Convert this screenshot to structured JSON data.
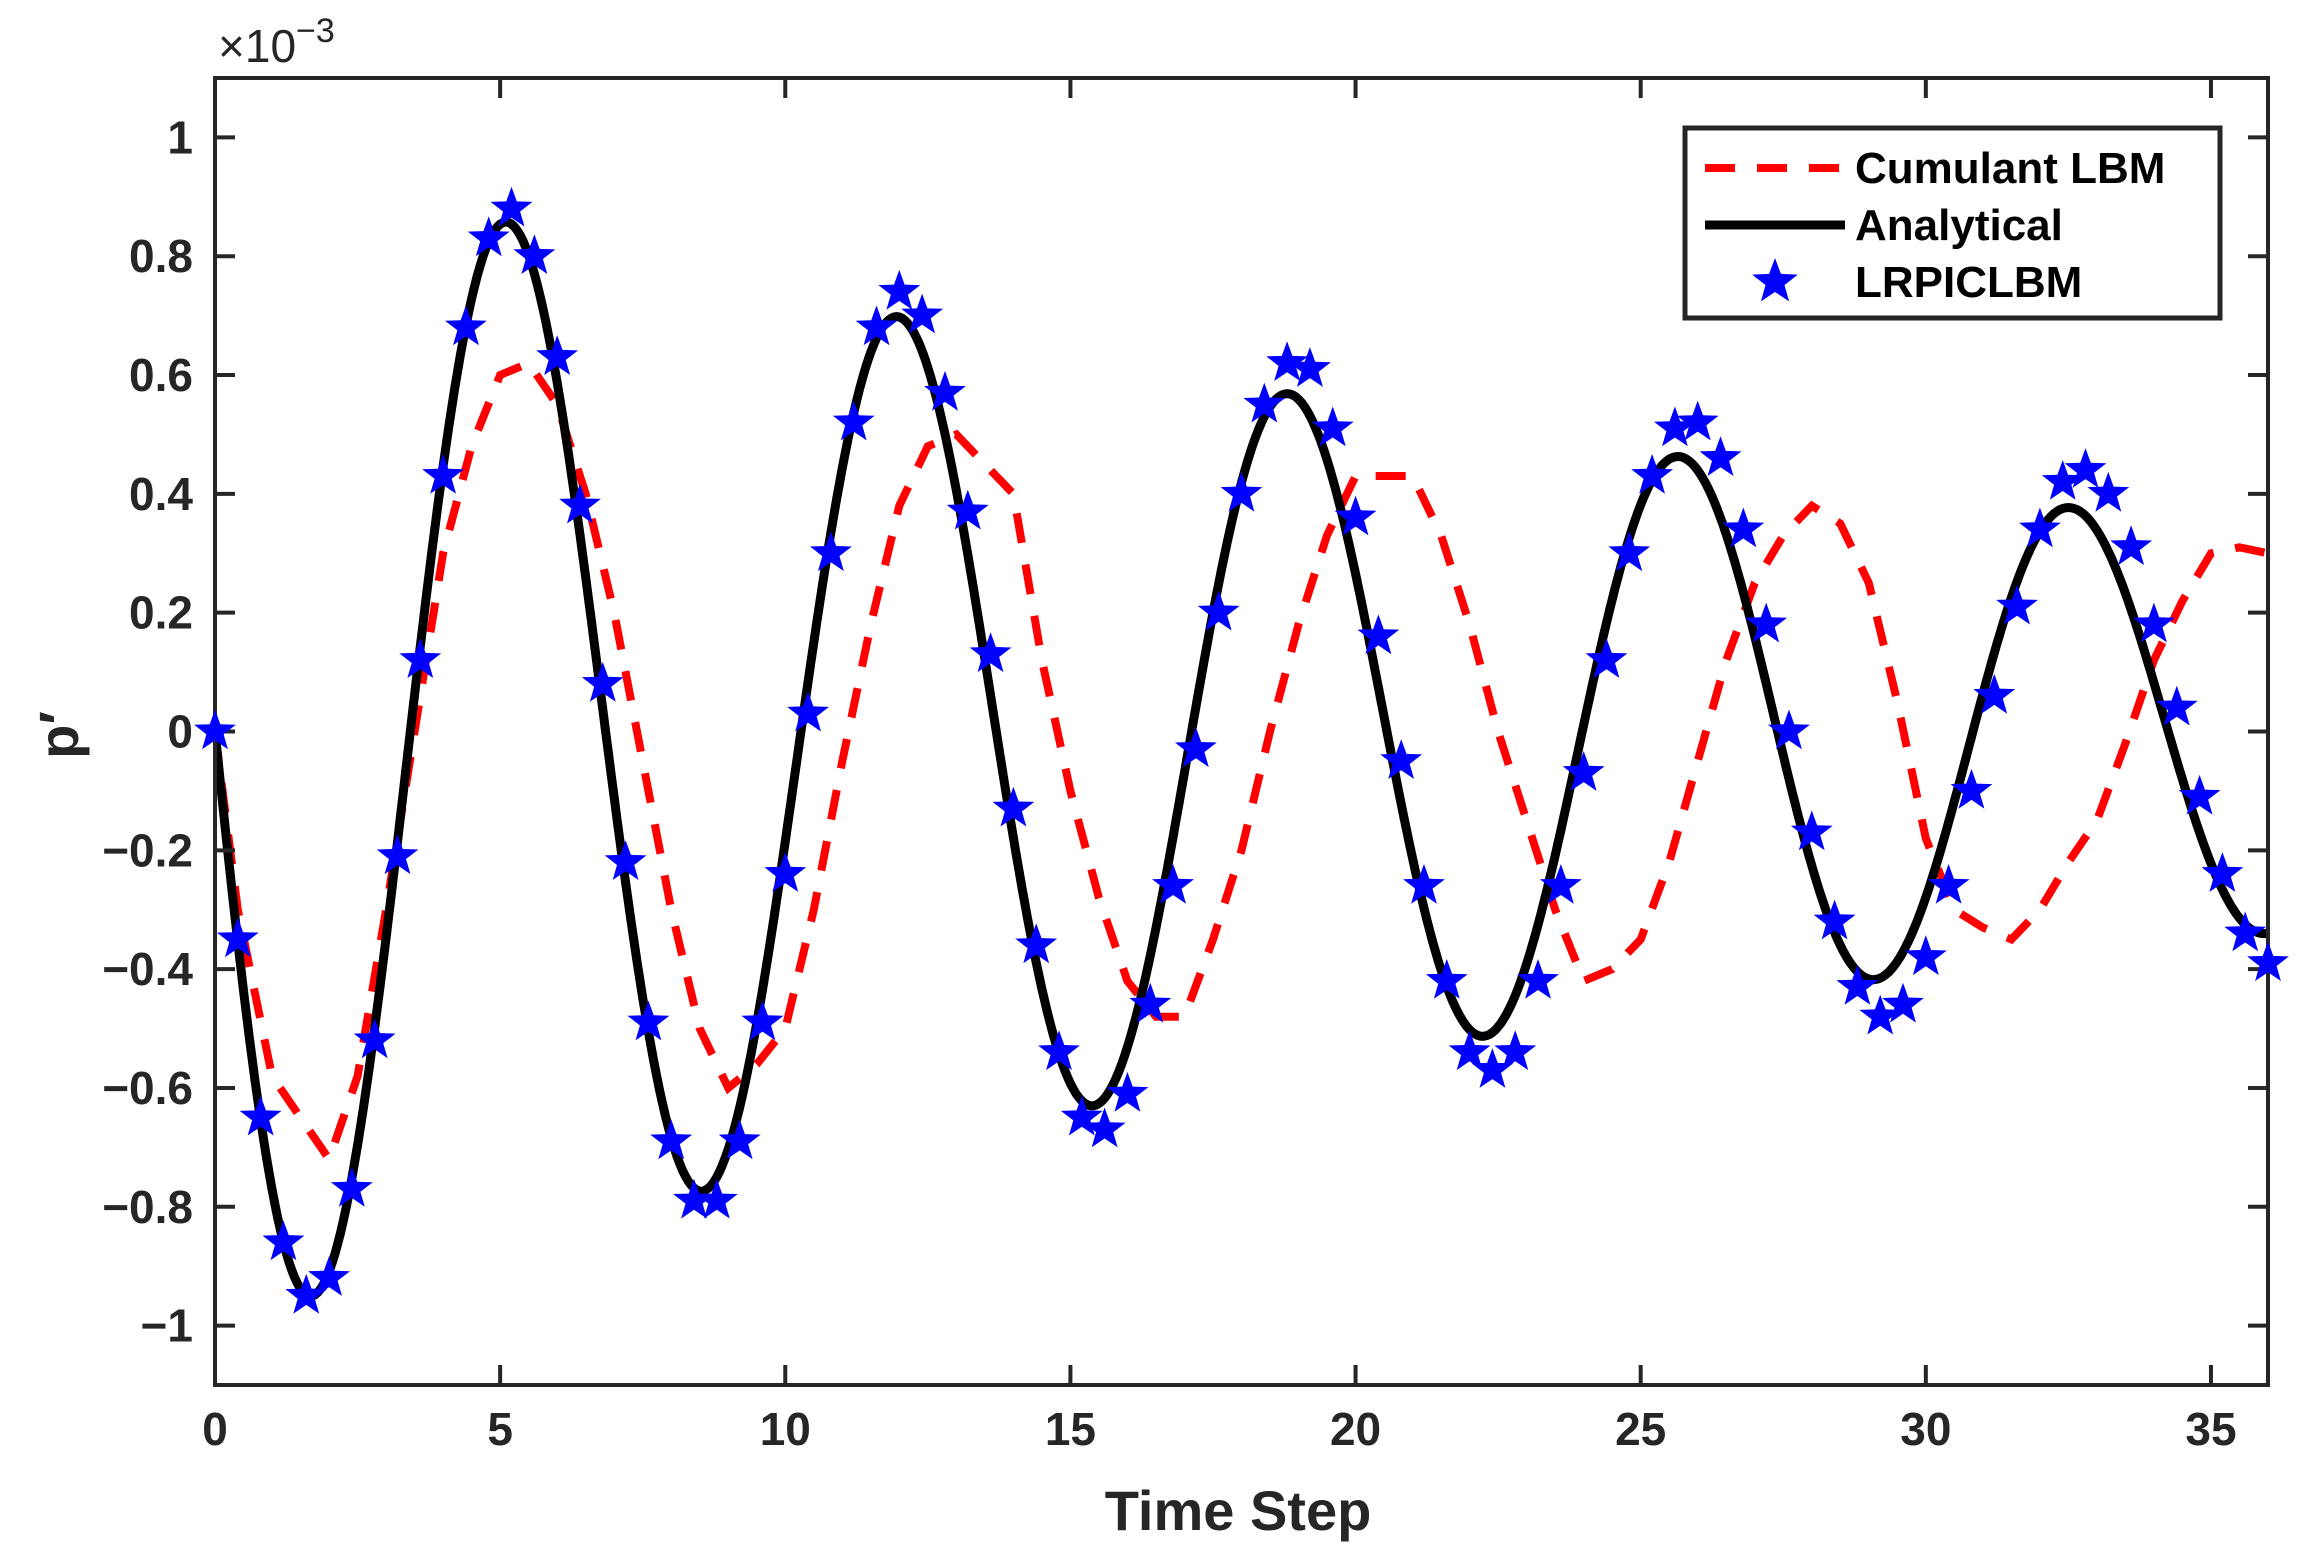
{
  "chart_data": {
    "type": "line",
    "xlabel": "Time Step",
    "ylabel": "p′",
    "y_exponent_label": "×10",
    "y_exponent_power": "−3",
    "xlim": [
      0,
      36
    ],
    "ylim": [
      -1.1,
      1.1
    ],
    "y_scale_factor": 0.001,
    "grid": false,
    "legend_position": "top-right",
    "x_ticks": [
      0,
      5,
      10,
      15,
      20,
      25,
      30,
      35
    ],
    "x_tick_labels": [
      "0",
      "5",
      "10",
      "15",
      "20",
      "25",
      "30",
      "35"
    ],
    "y_ticks": [
      -1,
      -0.8,
      -0.6,
      -0.4,
      -0.2,
      0,
      0.2,
      0.4,
      0.6,
      0.8,
      1
    ],
    "y_tick_labels": [
      "−1",
      "−0.8",
      "−0.6",
      "−0.4",
      "−0.2",
      "0",
      "0.2",
      "0.4",
      "0.6",
      "0.8",
      "1"
    ],
    "series": [
      {
        "name": "Cumulant LBM",
        "style": "dashed",
        "color": "#ff0000",
        "x": [
          0,
          0.4,
          1.0,
          1.5,
          2.0,
          2.5,
          3.0,
          3.5,
          4.0,
          4.5,
          5.0,
          5.5,
          6.0,
          6.5,
          7.0,
          7.5,
          8.0,
          8.5,
          9.0,
          9.5,
          10.0,
          10.5,
          11.0,
          11.5,
          12.0,
          12.5,
          13.0,
          13.5,
          14.0,
          14.5,
          15.0,
          15.5,
          16.0,
          16.5,
          17.0,
          17.5,
          18.0,
          18.5,
          19.0,
          19.5,
          20.0,
          20.5,
          21.0,
          21.5,
          22.0,
          22.5,
          23.0,
          23.5,
          24.0,
          24.5,
          25.0,
          25.5,
          26.0,
          26.5,
          27.0,
          27.5,
          28.0,
          28.5,
          29.0,
          29.5,
          30.0,
          30.5,
          31.0,
          31.5,
          32.0,
          32.5,
          33.0,
          33.5,
          34.0,
          34.5,
          35.0,
          35.5,
          36.0
        ],
        "values": [
          0,
          -0.3,
          -0.58,
          -0.65,
          -0.72,
          -0.58,
          -0.3,
          0.0,
          0.3,
          0.48,
          0.6,
          0.62,
          0.55,
          0.4,
          0.2,
          -0.05,
          -0.3,
          -0.5,
          -0.6,
          -0.56,
          -0.5,
          -0.3,
          -0.05,
          0.18,
          0.38,
          0.48,
          0.5,
          0.45,
          0.4,
          0.12,
          -0.1,
          -0.28,
          -0.42,
          -0.48,
          -0.48,
          -0.35,
          -0.2,
          0.0,
          0.18,
          0.33,
          0.43,
          0.43,
          0.43,
          0.33,
          0.18,
          0.0,
          -0.15,
          -0.3,
          -0.42,
          -0.4,
          -0.35,
          -0.22,
          -0.05,
          0.12,
          0.25,
          0.33,
          0.38,
          0.35,
          0.25,
          0.05,
          -0.18,
          -0.3,
          -0.33,
          -0.35,
          -0.3,
          -0.22,
          -0.15,
          -0.02,
          0.12,
          0.22,
          0.3,
          0.31,
          0.3
        ]
      },
      {
        "name": "Analytical",
        "style": "solid",
        "color": "#000000",
        "amplitude": -1.0,
        "decay": 0.03,
        "period": 6.85
      },
      {
        "name": "LRPICLBM",
        "style": "markers",
        "marker": "star",
        "color": "#0000ff",
        "x": [
          0,
          0.4,
          0.8,
          1.2,
          1.6,
          2.0,
          2.4,
          2.8,
          3.2,
          3.6,
          4.0,
          4.4,
          4.8,
          5.2,
          5.6,
          6.0,
          6.4,
          6.8,
          7.2,
          7.6,
          8.0,
          8.4,
          8.8,
          9.2,
          9.6,
          10.0,
          10.4,
          10.8,
          11.2,
          11.6,
          12.0,
          12.4,
          12.8,
          13.2,
          13.6,
          14.0,
          14.4,
          14.8,
          15.2,
          15.6,
          16.0,
          16.4,
          16.8,
          17.2,
          17.6,
          18.0,
          18.4,
          18.8,
          19.2,
          19.6,
          20.0,
          20.4,
          20.8,
          21.2,
          21.6,
          22.0,
          22.4,
          22.8,
          23.2,
          23.6,
          24.0,
          24.4,
          24.8,
          25.2,
          25.6,
          26.0,
          26.4,
          26.8,
          27.2,
          27.6,
          28.0,
          28.4,
          28.8,
          29.2,
          29.6,
          30.0,
          30.4,
          30.8,
          31.2,
          31.6,
          32.0,
          32.4,
          32.8,
          33.2,
          33.6,
          34.0,
          34.4,
          34.8,
          35.2,
          35.6,
          36.0
        ],
        "values": [
          0,
          -0.35,
          -0.65,
          -0.86,
          -0.95,
          -0.92,
          -0.77,
          -0.52,
          -0.21,
          0.12,
          0.43,
          0.68,
          0.83,
          0.88,
          0.8,
          0.63,
          0.38,
          0.08,
          -0.22,
          -0.49,
          -0.69,
          -0.79,
          -0.79,
          -0.69,
          -0.49,
          -0.24,
          0.03,
          0.3,
          0.52,
          0.68,
          0.74,
          0.7,
          0.57,
          0.37,
          0.13,
          -0.13,
          -0.36,
          -0.54,
          -0.65,
          -0.67,
          -0.61,
          -0.46,
          -0.26,
          -0.03,
          0.2,
          0.4,
          0.55,
          0.62,
          0.61,
          0.51,
          0.36,
          0.16,
          -0.05,
          -0.26,
          -0.42,
          -0.54,
          -0.57,
          -0.54,
          -0.42,
          -0.26,
          -0.07,
          0.12,
          0.3,
          0.43,
          0.51,
          0.52,
          0.46,
          0.34,
          0.18,
          0.0,
          -0.17,
          -0.32,
          -0.43,
          -0.48,
          -0.46,
          -0.38,
          -0.26,
          -0.1,
          0.06,
          0.21,
          0.34,
          0.42,
          0.44,
          0.4,
          0.31,
          0.18,
          0.04,
          -0.11,
          -0.24,
          -0.34,
          -0.39
        ]
      }
    ]
  }
}
